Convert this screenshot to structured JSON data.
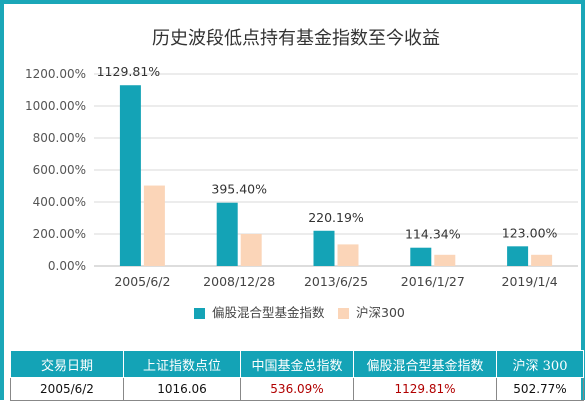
{
  "chart_data": {
    "type": "bar",
    "title": "历史波段低点持有基金指数至今收益",
    "categories": [
      "2005/6/2",
      "2008/12/28",
      "2013/6/25",
      "2016/1/27",
      "2019/1/4"
    ],
    "series": [
      {
        "name": "偏股混合型基金指数",
        "values": [
          1129.81,
          395.4,
          220.19,
          114.34,
          123.0
        ],
        "labels": [
          "1129.81%",
          "395.40%",
          "220.19%",
          "114.34%",
          "123.00%"
        ],
        "color": "#14a3b6"
      },
      {
        "name": "沪深300",
        "values": [
          502.77,
          200,
          135,
          70,
          70
        ],
        "color": "#fbd5b8"
      }
    ],
    "ylim": [
      0,
      1200
    ],
    "yticks": [
      "0.00%",
      "200.00%",
      "400.00%",
      "600.00%",
      "800.00%",
      "1000.00%",
      "1200.00%"
    ],
    "grid": true,
    "legend": "bottom-center"
  },
  "table": {
    "headers": [
      "交易日期",
      "上证指数点位",
      "中国基金总指数",
      "偏股混合型基金指数",
      "沪深 300"
    ],
    "rows": [
      [
        "2005/6/2",
        "1016.06",
        "536.09%",
        "1129.81%",
        "502.77%"
      ]
    ]
  }
}
